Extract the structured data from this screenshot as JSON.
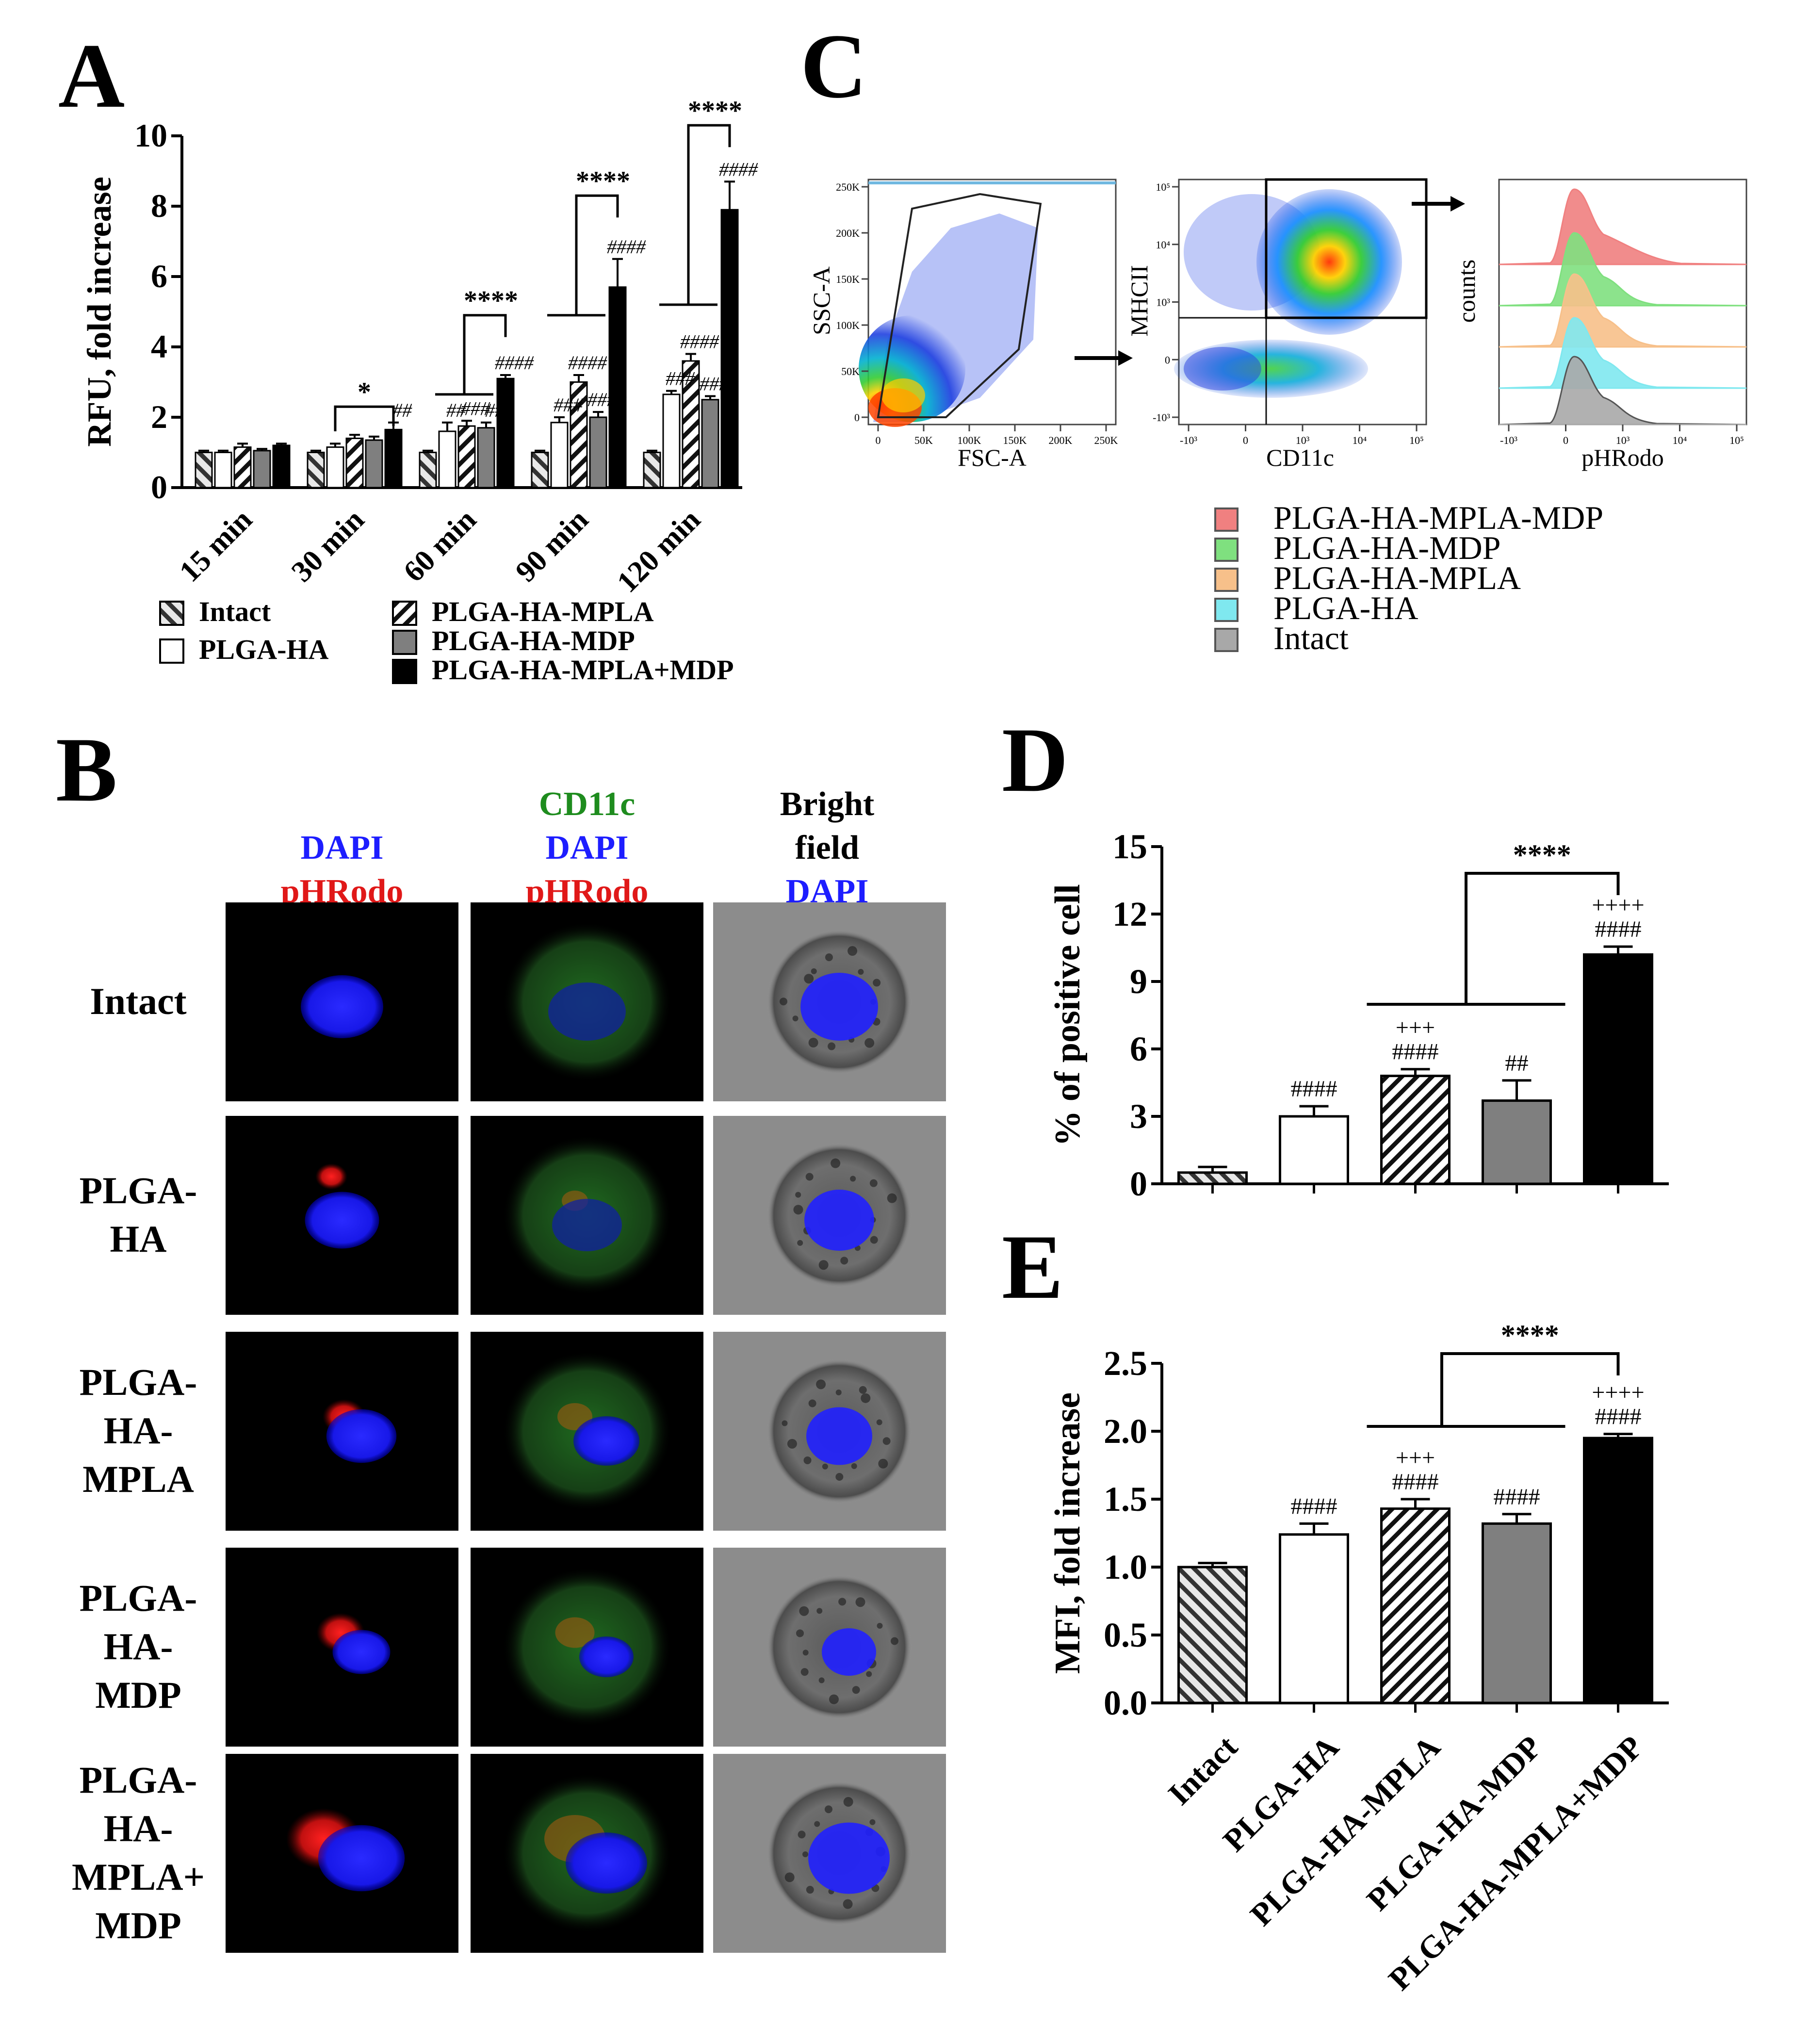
{
  "figure_title": "",
  "colors": {
    "dapi_blue": "#1d1dff",
    "phrodo_red": "#e01818",
    "cd11c_green": "#1e8c1e",
    "hist_red": "#f08080",
    "hist_green": "#7fe07f",
    "hist_orange": "#f7c08a",
    "hist_cyan": "#7fe8ef",
    "hist_gray": "#a8a8a8",
    "bar_black": "#000000",
    "bar_gray": "#7f7f7f"
  },
  "panels": {
    "A": {
      "letter": "A"
    },
    "B": {
      "letter": "B",
      "columns": [
        {
          "lines": [
            {
              "text": "DAPI",
              "color": "#1d1dff"
            },
            {
              "text": "pHRodo",
              "color": "#e01818"
            }
          ]
        },
        {
          "lines": [
            {
              "text": "CD11c",
              "color": "#1e8c1e"
            },
            {
              "text": "DAPI",
              "color": "#1d1dff"
            },
            {
              "text": "pHRodo",
              "color": "#e01818"
            }
          ]
        },
        {
          "lines": [
            {
              "text": "Bright",
              "color": "#000000"
            },
            {
              "text": "field",
              "color": "#000000"
            },
            {
              "text": "DAPI",
              "color": "#1d1dff"
            }
          ]
        }
      ],
      "rows": [
        {
          "lines": [
            "Intact"
          ]
        },
        {
          "lines": [
            "PLGA-",
            "HA"
          ]
        },
        {
          "lines": [
            "PLGA-",
            "HA-",
            "MPLA"
          ]
        },
        {
          "lines": [
            "PLGA-",
            "HA-",
            "MDP"
          ]
        },
        {
          "lines": [
            "PLGA-",
            "HA-",
            "MPLA+",
            "MDP"
          ]
        }
      ]
    },
    "C": {
      "letter": "C",
      "plot1": {
        "xlabel": "FSC-A",
        "ylabel": "SSC-A",
        "xticks": [
          "0",
          "50K",
          "100K",
          "150K",
          "200K",
          "250K"
        ],
        "yticks": [
          "0",
          "50K",
          "100K",
          "150K",
          "200K",
          "250K"
        ]
      },
      "plot2": {
        "xlabel": "CD11c",
        "ylabel": "MHCII",
        "xticks": [
          "-10³",
          "0",
          "10³",
          "10⁴",
          "10⁵"
        ],
        "yticks": [
          "-10³",
          "0",
          "10³",
          "10⁴",
          "10⁵"
        ]
      },
      "plot3": {
        "xlabel": "pHRodo",
        "ylabel": "counts",
        "xticks": [
          "-10³",
          "0",
          "10³",
          "10⁴",
          "10⁵"
        ]
      },
      "legend": [
        {
          "label": "PLGA-HA-MPLA-MDP",
          "color": "#f08080"
        },
        {
          "label": "PLGA-HA-MDP",
          "color": "#7fe07f"
        },
        {
          "label": "PLGA-HA-MPLA",
          "color": "#f7c08a"
        },
        {
          "label": "PLGA-HA",
          "color": "#7fe8ef"
        },
        {
          "label": "Intact",
          "color": "#a8a8a8"
        }
      ]
    },
    "D": {
      "letter": "D"
    },
    "E": {
      "letter": "E"
    }
  },
  "chart_data": [
    {
      "panel": "A",
      "type": "bar",
      "ylabel": "RFU, fold increase",
      "ylim": [
        0,
        10
      ],
      "yticks": [
        "0",
        "2",
        "4",
        "6",
        "8",
        "10"
      ],
      "categories": [
        "15 min",
        "30 min",
        "60 min",
        "90 min",
        "120 min"
      ],
      "series": [
        {
          "name": "Intact",
          "fill": "hatch-back",
          "values": [
            1.0,
            1.0,
            1.0,
            1.0,
            1.0
          ],
          "err": [
            0.05,
            0.05,
            0.05,
            0.05,
            0.05
          ]
        },
        {
          "name": "PLGA-HA",
          "fill": "white",
          "values": [
            1.0,
            1.15,
            1.6,
            1.85,
            2.65
          ],
          "err": [
            0.05,
            0.1,
            0.25,
            0.15,
            0.1
          ]
        },
        {
          "name": "PLGA-HA-MPLA",
          "fill": "hatch-fwd",
          "values": [
            1.15,
            1.4,
            1.75,
            3.0,
            3.6
          ],
          "err": [
            0.1,
            0.1,
            0.15,
            0.2,
            0.2
          ]
        },
        {
          "name": "PLGA-HA-MDP",
          "fill": "gray",
          "values": [
            1.05,
            1.35,
            1.7,
            2.0,
            2.5
          ],
          "err": [
            0.05,
            0.1,
            0.15,
            0.15,
            0.1
          ]
        },
        {
          "name": "PLGA-HA-MPLA+MDP",
          "fill": "black",
          "values": [
            1.2,
            1.65,
            3.1,
            5.7,
            7.9
          ],
          "err": [
            0.05,
            0.2,
            0.1,
            0.8,
            0.8
          ]
        }
      ],
      "significance": [
        {
          "group": 1,
          "label": "*"
        },
        {
          "group": 2,
          "label": "****"
        },
        {
          "group": 3,
          "label": "****"
        },
        {
          "group": 4,
          "label": "****"
        }
      ],
      "hash_marks": [
        {
          "group": 1,
          "series": 4,
          "label": "##"
        },
        {
          "group": 2,
          "series": 1,
          "label": "##"
        },
        {
          "group": 2,
          "series": 2,
          "label": "###"
        },
        {
          "group": 2,
          "series": 3,
          "label": "##"
        },
        {
          "group": 2,
          "series": 4,
          "label": "####"
        },
        {
          "group": 3,
          "series": 1,
          "label": "###"
        },
        {
          "group": 3,
          "series": 2,
          "label": "####"
        },
        {
          "group": 3,
          "series": 3,
          "label": "####"
        },
        {
          "group": 3,
          "series": 4,
          "label": "####"
        },
        {
          "group": 4,
          "series": 1,
          "label": "###"
        },
        {
          "group": 4,
          "series": 2,
          "label": "####"
        },
        {
          "group": 4,
          "series": 3,
          "label": "####"
        },
        {
          "group": 4,
          "series": 4,
          "label": "####"
        }
      ],
      "legend_placement": "bottom"
    },
    {
      "panel": "D",
      "type": "bar",
      "ylabel": "% of positive cell",
      "ylim": [
        0,
        15
      ],
      "yticks": [
        "0",
        "3",
        "6",
        "9",
        "12",
        "15"
      ],
      "categories": [
        "Intact",
        "PLGA-HA",
        "PLGA-HA-MPLA",
        "PLGA-HA-MDP",
        "PLGA-HA-MPLA+MDP"
      ],
      "fills": [
        "hatch-back",
        "white",
        "hatch-fwd",
        "gray",
        "black"
      ],
      "values": [
        0.5,
        3.0,
        4.8,
        3.7,
        10.2
      ],
      "err": [
        0.25,
        0.45,
        0.3,
        0.9,
        0.35
      ],
      "annotations": [
        {
          "index": 1,
          "lines": [
            "####"
          ]
        },
        {
          "index": 2,
          "lines": [
            "+++",
            "####"
          ]
        },
        {
          "index": 3,
          "lines": [
            "##"
          ]
        },
        {
          "index": 4,
          "lines": [
            "++++",
            "####"
          ]
        }
      ],
      "comparison_label": "****"
    },
    {
      "panel": "E",
      "type": "bar",
      "ylabel": "MFI, fold increase",
      "ylim": [
        0,
        2.5
      ],
      "yticks": [
        "0.0",
        "0.5",
        "1.0",
        "1.5",
        "2.0",
        "2.5"
      ],
      "categories": [
        "Intact",
        "PLGA-HA",
        "PLGA-HA-MPLA",
        "PLGA-HA-MDP",
        "PLGA-HA-MPLA+MDP"
      ],
      "fills": [
        "hatch-back",
        "white",
        "hatch-fwd",
        "gray",
        "black"
      ],
      "values": [
        1.0,
        1.24,
        1.43,
        1.32,
        1.95
      ],
      "err": [
        0.03,
        0.08,
        0.07,
        0.07,
        0.03
      ],
      "annotations": [
        {
          "index": 1,
          "lines": [
            "####"
          ]
        },
        {
          "index": 2,
          "lines": [
            "+++",
            "####"
          ]
        },
        {
          "index": 3,
          "lines": [
            "####"
          ]
        },
        {
          "index": 4,
          "lines": [
            "++++",
            "####"
          ]
        }
      ],
      "comparison_label": "****"
    }
  ]
}
